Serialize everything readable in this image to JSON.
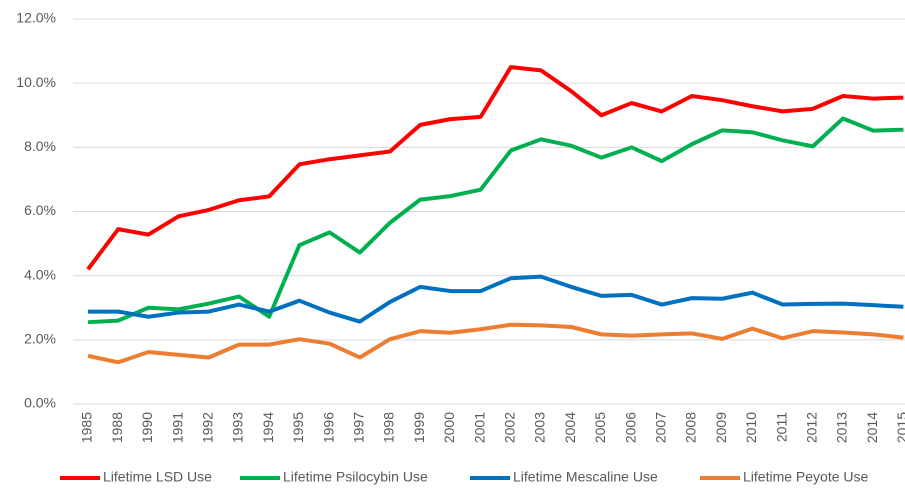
{
  "chart_data": {
    "type": "line",
    "categories": [
      "1985",
      "1988",
      "1990",
      "1991",
      "1992",
      "1993",
      "1994",
      "1995",
      "1996",
      "1997",
      "1998",
      "1999",
      "2000",
      "2001",
      "2002",
      "2003",
      "2004",
      "2005",
      "2006",
      "2007",
      "2008",
      "2009",
      "2010",
      "2011",
      "2012",
      "2013",
      "2014",
      "2015"
    ],
    "series": [
      {
        "name": "Lifetime LSD Use",
        "color": "#ff0000",
        "values": [
          4.2,
          5.45,
          5.28,
          5.85,
          6.05,
          6.35,
          6.47,
          7.47,
          7.63,
          7.75,
          7.87,
          8.7,
          8.88,
          8.95,
          10.5,
          10.4,
          9.75,
          9.0,
          9.38,
          9.12,
          9.6,
          9.47,
          9.28,
          9.12,
          9.2,
          9.6,
          9.52,
          9.55
        ]
      },
      {
        "name": "Lifetime Psilocybin Use",
        "color": "#00b050",
        "values": [
          2.55,
          2.6,
          3.0,
          2.95,
          3.13,
          3.35,
          2.72,
          4.95,
          5.35,
          4.72,
          5.65,
          6.37,
          6.48,
          6.68,
          7.9,
          8.25,
          8.05,
          7.68,
          8.0,
          7.57,
          8.1,
          8.53,
          8.47,
          8.22,
          8.03,
          8.9,
          8.52,
          8.55
        ]
      },
      {
        "name": "Lifetime Mescaline Use",
        "color": "#0070c0",
        "values": [
          2.88,
          2.88,
          2.72,
          2.85,
          2.88,
          3.1,
          2.88,
          3.22,
          2.85,
          2.57,
          3.18,
          3.65,
          3.52,
          3.52,
          3.92,
          3.97,
          3.65,
          3.37,
          3.4,
          3.1,
          3.3,
          3.28,
          3.47,
          3.1,
          3.12,
          3.13,
          3.08,
          3.03
        ]
      },
      {
        "name": "Lifetime Peyote Use",
        "color": "#ed7d31",
        "values": [
          1.5,
          1.3,
          1.62,
          1.53,
          1.45,
          1.85,
          1.85,
          2.02,
          1.88,
          1.45,
          2.02,
          2.27,
          2.22,
          2.33,
          2.47,
          2.45,
          2.4,
          2.17,
          2.13,
          2.17,
          2.2,
          2.03,
          2.35,
          2.05,
          2.27,
          2.23,
          2.17,
          2.07
        ]
      }
    ],
    "ylim": [
      0,
      12
    ],
    "yticks": [
      {
        "value": 0,
        "label": "0.0%"
      },
      {
        "value": 2,
        "label": "2.0%"
      },
      {
        "value": 4,
        "label": "4.0%"
      },
      {
        "value": 6,
        "label": "6.0%"
      },
      {
        "value": 8,
        "label": "8.0%"
      },
      {
        "value": 10,
        "label": "10.0%"
      },
      {
        "value": 12,
        "label": "12.0%"
      }
    ],
    "grid": true,
    "legend": "bottom"
  }
}
